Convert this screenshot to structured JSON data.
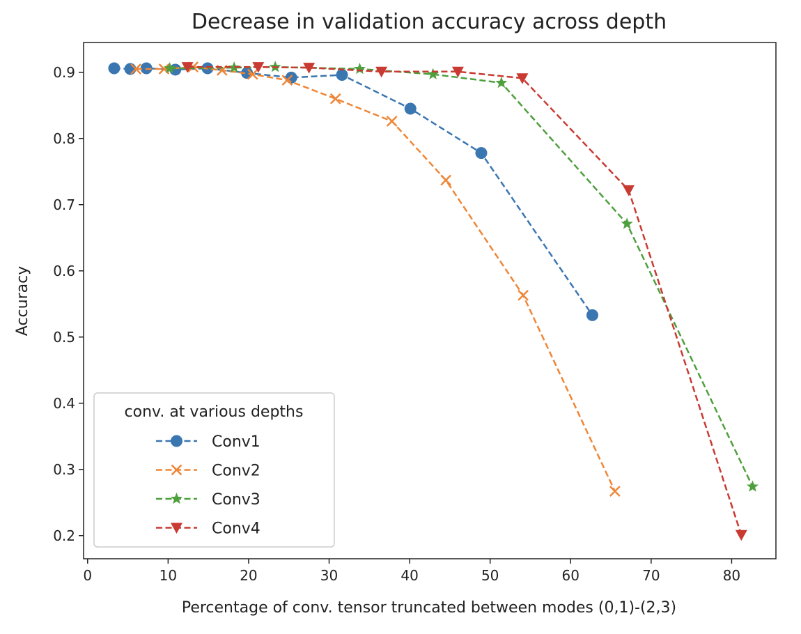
{
  "chart_data": {
    "type": "line",
    "title": "Decrease in validation accuracy across depth",
    "xlabel": "Percentage of conv. tensor truncated between modes (0,1)-(2,3)",
    "ylabel": "Accuracy",
    "xlim": [
      -0.5,
      85.5
    ],
    "ylim": [
      0.165,
      0.945
    ],
    "xticks": [
      0,
      10,
      20,
      30,
      40,
      50,
      60,
      70,
      80
    ],
    "yticks": [
      0.2,
      0.3,
      0.4,
      0.5,
      0.6,
      0.7,
      0.8,
      0.9
    ],
    "grid": false,
    "legend": {
      "title": "conv. at various depths",
      "position": "lower-left"
    },
    "series": [
      {
        "name": "Conv1",
        "color": "#3a76b0",
        "marker": "circle",
        "x": [
          3.3,
          5.3,
          7.3,
          10.9,
          14.9,
          19.8,
          25.3,
          31.6,
          40.1,
          48.9,
          62.7
        ],
        "y": [
          0.906,
          0.905,
          0.906,
          0.904,
          0.906,
          0.899,
          0.892,
          0.896,
          0.845,
          0.778,
          0.533
        ]
      },
      {
        "name": "Conv2",
        "color": "#ef8636",
        "marker": "x",
        "x": [
          6.0,
          9.5,
          13.1,
          16.7,
          20.5,
          24.8,
          30.8,
          37.8,
          44.5,
          54.1,
          65.5
        ],
        "y": [
          0.905,
          0.905,
          0.908,
          0.903,
          0.897,
          0.888,
          0.86,
          0.826,
          0.737,
          0.563,
          0.267
        ]
      },
      {
        "name": "Conv3",
        "color": "#4e9f3d",
        "marker": "star",
        "x": [
          10.2,
          18.2,
          23.3,
          33.8,
          42.9,
          51.4,
          67.0,
          82.6
        ],
        "y": [
          0.906,
          0.907,
          0.908,
          0.905,
          0.897,
          0.884,
          0.671,
          0.274
        ]
      },
      {
        "name": "Conv4",
        "color": "#c93a32",
        "marker": "triangle-down",
        "x": [
          12.4,
          21.2,
          27.5,
          36.5,
          46.0,
          54.0,
          67.2,
          81.2
        ],
        "y": [
          0.908,
          0.908,
          0.907,
          0.901,
          0.901,
          0.891,
          0.722,
          0.201
        ]
      }
    ]
  }
}
